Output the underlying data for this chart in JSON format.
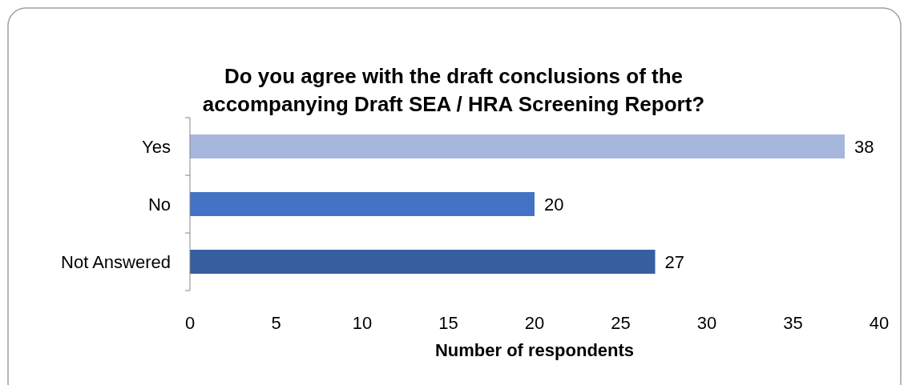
{
  "chart_data": {
    "type": "bar",
    "orientation": "horizontal",
    "title": "Do you agree with the draft conclusions of the accompanying Draft SEA / HRA Screening Report?",
    "xlabel": "Number of respondents",
    "categories": [
      "Yes",
      "No",
      "Not Answered"
    ],
    "values": [
      38,
      20,
      27
    ],
    "colors": [
      "#a6b6dc",
      "#4472c4",
      "#365f9f"
    ],
    "xlim": [
      0,
      40
    ],
    "xticks": [
      0,
      5,
      10,
      15,
      20,
      25,
      30,
      35,
      40
    ],
    "grid": false,
    "data_labels": true
  }
}
